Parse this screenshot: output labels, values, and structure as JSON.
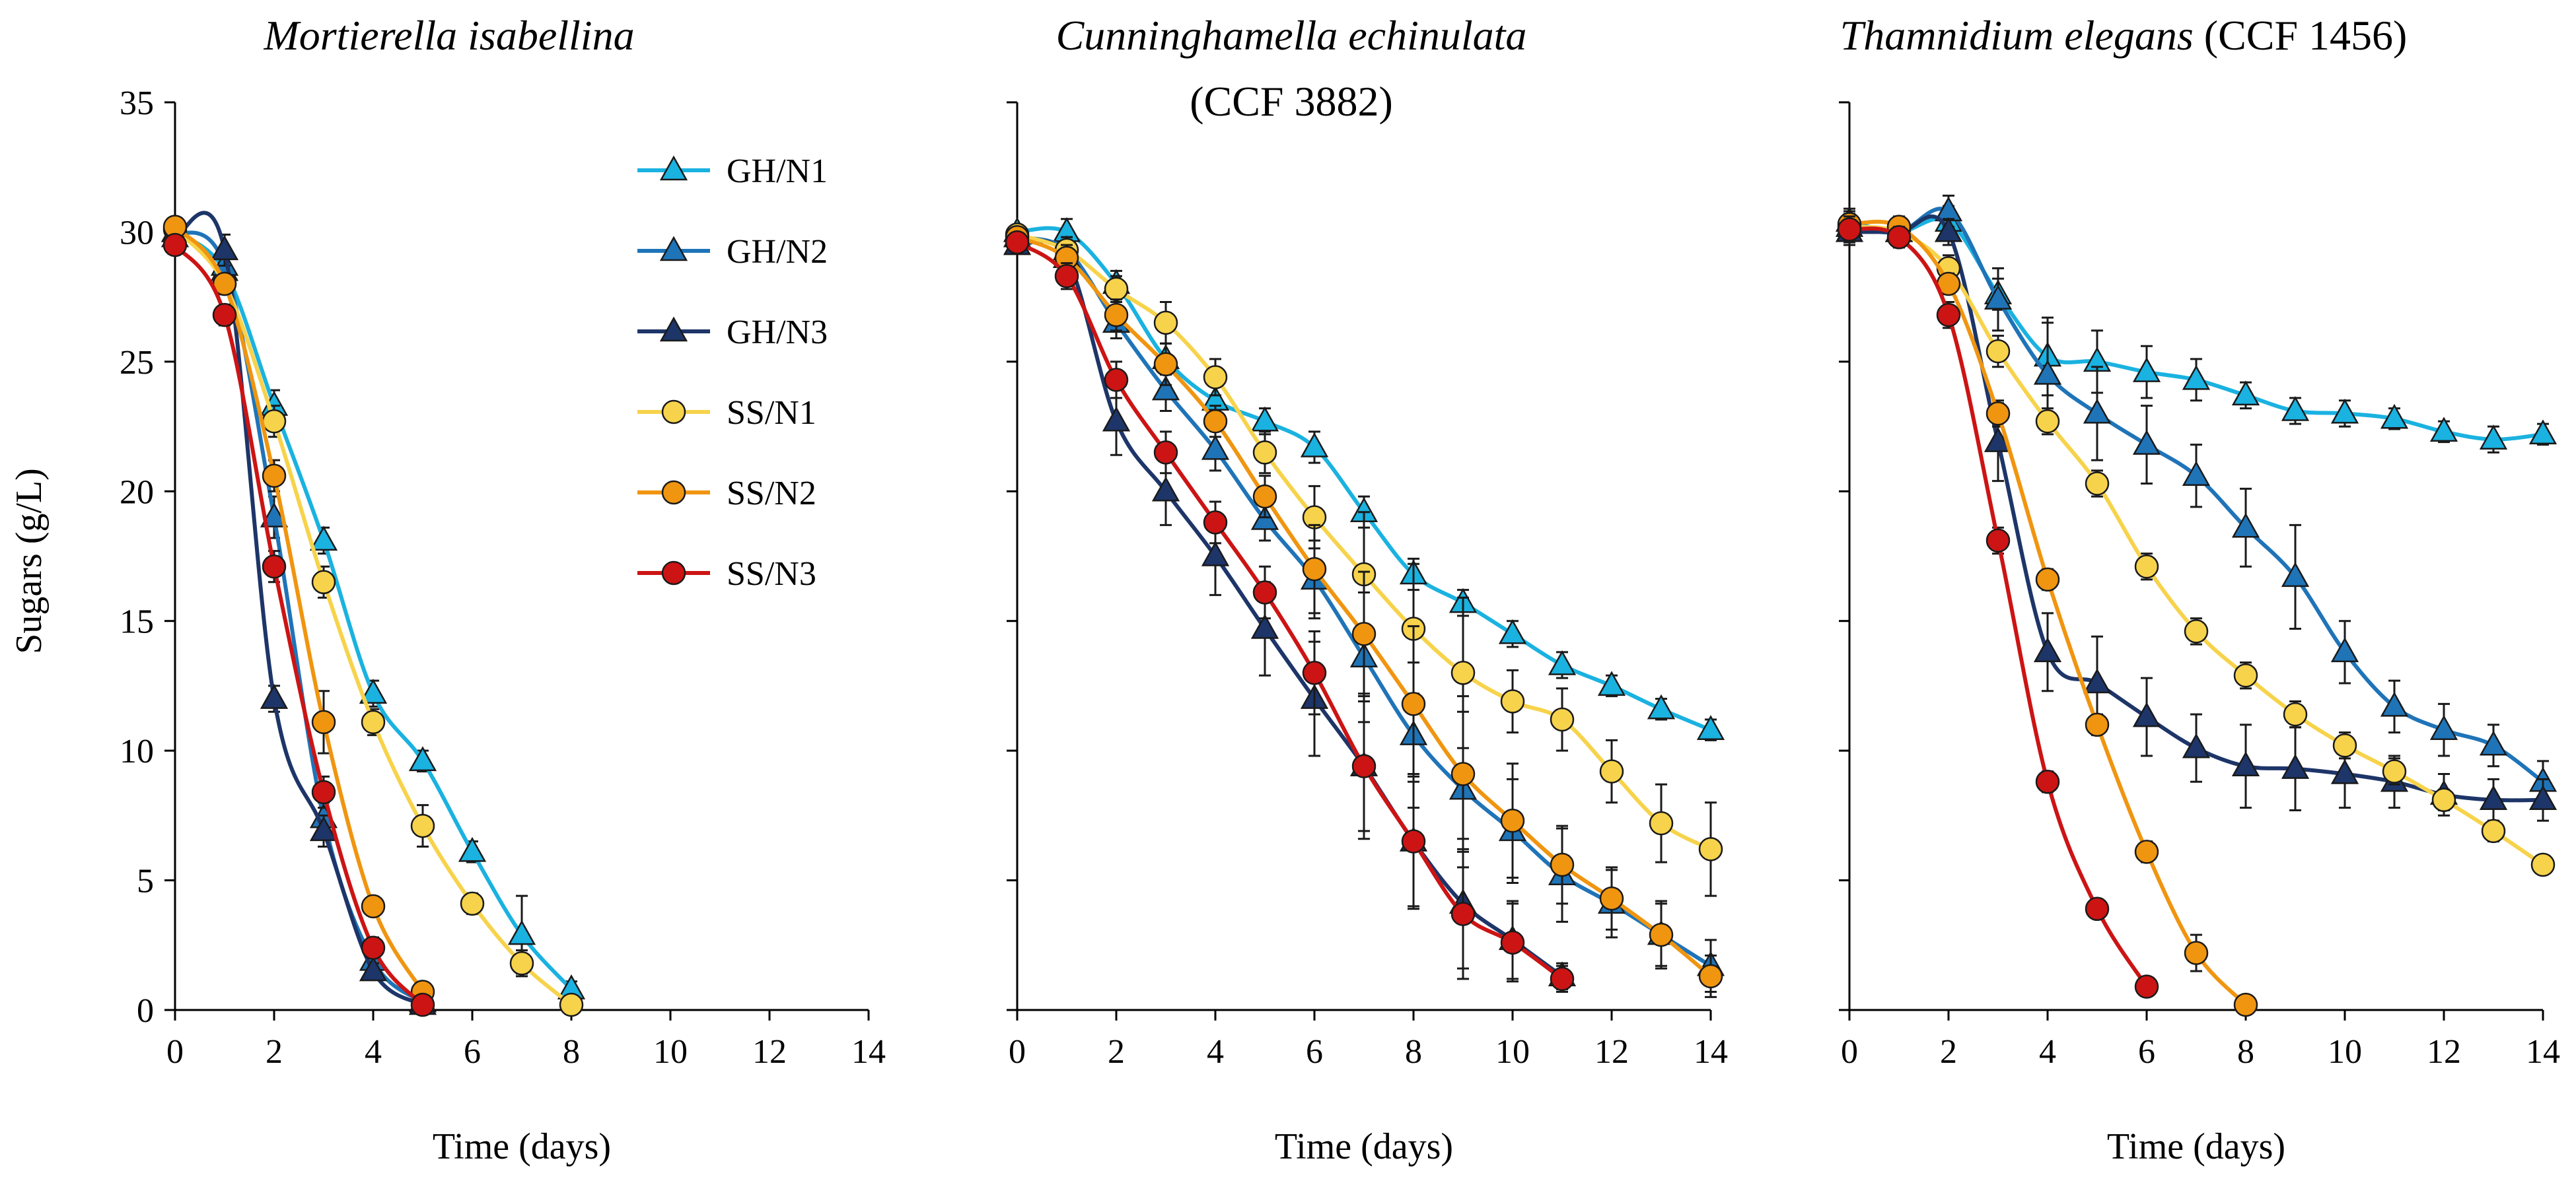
{
  "chart_data": [
    {
      "type": "line",
      "title": "Mortierella isabellina",
      "xlabel": "Time (days)",
      "ylabel": "Sugars (g/L)",
      "xlim": [
        0,
        14
      ],
      "ylim": [
        0,
        35
      ],
      "xticks": [
        0,
        2,
        4,
        6,
        8,
        10,
        12,
        14
      ],
      "yticks": [
        0,
        5,
        10,
        15,
        20,
        25,
        30,
        35
      ],
      "legend_position": "top-right",
      "series": [
        {
          "name": "GH/N1",
          "x": [
            0,
            1,
            2,
            3,
            4,
            5,
            6,
            7,
            8
          ],
          "y": [
            30.0,
            28.5,
            23.3,
            18.1,
            12.2,
            9.6,
            6.1,
            2.9,
            0.8
          ],
          "err": [
            0,
            0.5,
            0.6,
            0.5,
            0.5,
            0.4,
            0.4,
            1.5,
            0.3
          ]
        },
        {
          "name": "GH/N2",
          "x": [
            0,
            1,
            2,
            3,
            4,
            5
          ],
          "y": [
            30.0,
            28.7,
            19.0,
            7.4,
            1.9,
            0.3
          ],
          "err": [
            0,
            0.6,
            0.8,
            0.6,
            0.3,
            0.2
          ]
        },
        {
          "name": "GH/N3",
          "x": [
            0,
            1,
            2,
            3,
            4,
            5
          ],
          "y": [
            29.8,
            29.3,
            12.0,
            6.9,
            1.5,
            0.2
          ],
          "err": [
            0,
            0.6,
            0.5,
            0.6,
            0.3,
            0.2
          ]
        },
        {
          "name": "SS/N1",
          "x": [
            0,
            1,
            2,
            3,
            4,
            5,
            6,
            7,
            8
          ],
          "y": [
            30.1,
            28.0,
            22.7,
            16.5,
            11.1,
            7.1,
            4.1,
            1.8,
            0.2
          ],
          "err": [
            0,
            0.4,
            0.6,
            0.6,
            0.5,
            0.8,
            0.4,
            0.5,
            0.2
          ]
        },
        {
          "name": "SS/N2",
          "x": [
            0,
            1,
            2,
            3,
            4,
            5
          ],
          "y": [
            30.2,
            28.0,
            20.6,
            11.1,
            4.0,
            0.7
          ],
          "err": [
            0,
            0.4,
            0.6,
            1.2,
            0.3,
            0.3
          ]
        },
        {
          "name": "SS/N3",
          "x": [
            0,
            1,
            2,
            3,
            4,
            5
          ],
          "y": [
            29.5,
            26.8,
            17.1,
            8.4,
            2.4,
            0.2
          ],
          "err": [
            0,
            0.4,
            0.6,
            0.6,
            0.4,
            0.2
          ]
        }
      ]
    },
    {
      "type": "line",
      "title": "Cunninghamella echinulata",
      "subtitle": "(CCF 3882)",
      "xlabel": "Time (days)",
      "ylabel": "",
      "xlim": [
        0,
        14
      ],
      "ylim": [
        0,
        35
      ],
      "xticks": [
        0,
        2,
        4,
        6,
        8,
        10,
        12,
        14
      ],
      "yticks": [
        0,
        5,
        10,
        15,
        20,
        25,
        30,
        35
      ],
      "series": [
        {
          "name": "GH/N1",
          "x": [
            0,
            1,
            2,
            3,
            4,
            5,
            6,
            7,
            8,
            9,
            10,
            11,
            12,
            13,
            14
          ],
          "y": [
            30.0,
            30.0,
            28.0,
            25.1,
            23.5,
            22.7,
            21.7,
            19.2,
            16.8,
            15.7,
            14.5,
            13.3,
            12.5,
            11.6,
            10.8
          ],
          "err": [
            0,
            0.5,
            0.5,
            0.6,
            0.6,
            0.5,
            0.6,
            0.6,
            0.6,
            0.5,
            0.5,
            0.5,
            0.4,
            0.4,
            0.4
          ]
        },
        {
          "name": "GH/N2",
          "x": [
            0,
            1,
            2,
            3,
            4,
            5,
            6,
            7,
            8,
            9,
            10,
            11,
            12,
            13,
            14
          ],
          "y": [
            29.8,
            29.3,
            26.5,
            23.9,
            21.6,
            18.9,
            16.6,
            13.6,
            10.6,
            8.5,
            6.9,
            5.2,
            4.1,
            2.9,
            1.7
          ],
          "err": [
            0,
            0.5,
            0.6,
            0.8,
            0.8,
            0.8,
            1.5,
            2.5,
            2.8,
            3.0,
            2.0,
            1.8,
            1.3,
            1.3,
            1.0
          ]
        },
        {
          "name": "GH/N3",
          "x": [
            0,
            1,
            2,
            3,
            4,
            5,
            6,
            7,
            8,
            9,
            10,
            11
          ],
          "y": [
            29.5,
            29.0,
            22.7,
            20.0,
            17.5,
            14.7,
            12.0,
            9.4,
            6.5,
            4.1,
            2.7,
            1.3
          ],
          "err": [
            0,
            0.5,
            1.3,
            1.3,
            1.5,
            1.8,
            2.2,
            2.5,
            2.5,
            2.5,
            1.5,
            0.5
          ]
        },
        {
          "name": "SS/N1",
          "x": [
            0,
            1,
            2,
            3,
            4,
            5,
            6,
            7,
            8,
            9,
            10,
            11,
            12,
            13,
            14
          ],
          "y": [
            29.9,
            29.3,
            27.8,
            26.5,
            24.4,
            21.5,
            19.0,
            16.8,
            14.7,
            13.0,
            11.9,
            11.2,
            9.2,
            7.2,
            6.2
          ],
          "err": [
            0,
            0.5,
            0.5,
            0.8,
            0.7,
            0.8,
            1.2,
            2.4,
            2.5,
            2.9,
            1.2,
            1.2,
            1.2,
            1.5,
            1.8
          ]
        },
        {
          "name": "SS/N2",
          "x": [
            0,
            1,
            2,
            3,
            4,
            5,
            6,
            7,
            8,
            9,
            10,
            11,
            12,
            13,
            14
          ],
          "y": [
            29.8,
            29.0,
            26.8,
            24.9,
            22.7,
            19.8,
            17.0,
            14.5,
            11.8,
            9.1,
            7.3,
            5.6,
            4.3,
            2.9,
            1.3
          ],
          "err": [
            0,
            0.5,
            0.6,
            0.8,
            0.6,
            0.8,
            1.7,
            2.4,
            3.0,
            3.0,
            2.2,
            1.5,
            1.2,
            1.2,
            0.8
          ]
        },
        {
          "name": "SS/N3",
          "x": [
            0,
            1,
            2,
            3,
            4,
            5,
            6,
            7,
            8,
            9,
            10,
            11
          ],
          "y": [
            29.6,
            28.3,
            24.3,
            21.5,
            18.8,
            16.1,
            13.0,
            9.4,
            6.5,
            3.7,
            2.6,
            1.2
          ],
          "err": [
            0,
            0.5,
            0.7,
            0.8,
            0.8,
            1.0,
            1.6,
            2.8,
            2.6,
            2.5,
            1.5,
            0.5
          ]
        }
      ]
    },
    {
      "type": "line",
      "title": "Thamnidium elegans",
      "title_suffix": " (CCF 1456)",
      "xlabel": "Time (days)",
      "ylabel": "",
      "xlim": [
        0,
        14
      ],
      "ylim": [
        0,
        35
      ],
      "xticks": [
        0,
        2,
        4,
        6,
        8,
        10,
        12,
        14
      ],
      "yticks": [
        0,
        5,
        10,
        15,
        20,
        25,
        30,
        35
      ],
      "series": [
        {
          "name": "GH/N1",
          "x": [
            0,
            1,
            2,
            3,
            4,
            5,
            6,
            7,
            8,
            9,
            10,
            11,
            12,
            13,
            14
          ],
          "y": [
            30.4,
            30.0,
            30.4,
            27.6,
            25.2,
            25.0,
            24.6,
            24.3,
            23.7,
            23.1,
            23.0,
            22.8,
            22.3,
            22.0,
            22.2
          ],
          "err": [
            0.5,
            0.4,
            0.6,
            0.6,
            1.5,
            1.2,
            1.0,
            0.8,
            0.5,
            0.5,
            0.5,
            0.4,
            0.4,
            0.5,
            0.4
          ]
        },
        {
          "name": "GH/N2",
          "x": [
            0,
            1,
            2,
            3,
            4,
            5,
            6,
            7,
            8,
            9,
            10,
            11,
            12,
            13,
            14
          ],
          "y": [
            30.2,
            30.0,
            30.8,
            27.4,
            24.5,
            23.0,
            21.8,
            20.6,
            18.6,
            16.7,
            13.8,
            11.7,
            10.8,
            10.2,
            8.8
          ],
          "err": [
            0.5,
            0.4,
            0.6,
            1.2,
            2.0,
            1.8,
            1.5,
            1.2,
            1.5,
            2.0,
            1.2,
            1.0,
            1.0,
            0.8,
            0.8
          ]
        },
        {
          "name": "GH/N3",
          "x": [
            0,
            1,
            2,
            3,
            4,
            5,
            6,
            7,
            8,
            9,
            10,
            11,
            12,
            13,
            14
          ],
          "y": [
            30.0,
            30.0,
            30.0,
            21.9,
            13.8,
            12.6,
            11.3,
            10.1,
            9.4,
            9.3,
            9.1,
            8.8,
            8.3,
            8.1,
            8.1
          ],
          "err": [
            0.5,
            0.4,
            0.5,
            1.5,
            1.5,
            1.8,
            1.5,
            1.3,
            1.6,
            1.6,
            1.3,
            1.0,
            0.8,
            0.8,
            0.8
          ]
        },
        {
          "name": "SS/N1",
          "x": [
            0,
            1,
            2,
            3,
            4,
            5,
            6,
            7,
            8,
            9,
            10,
            11,
            12,
            13,
            14
          ],
          "y": [
            30.2,
            30.0,
            28.6,
            25.4,
            22.7,
            20.3,
            17.1,
            14.6,
            12.9,
            11.4,
            10.2,
            9.2,
            8.1,
            6.9,
            5.6
          ],
          "err": [
            0.5,
            0.4,
            0.5,
            0.6,
            0.5,
            0.5,
            0.5,
            0.5,
            0.5,
            0.5,
            0.5,
            0.5,
            0.4,
            0.4,
            0.3
          ]
        },
        {
          "name": "SS/N2",
          "x": [
            0,
            1,
            2,
            3,
            4,
            5,
            6,
            7,
            8
          ],
          "y": [
            30.3,
            30.2,
            28.0,
            23.0,
            16.6,
            11.0,
            6.1,
            2.2,
            0.2
          ],
          "err": [
            0.5,
            0.4,
            0.4,
            0.5,
            0.4,
            0.4,
            0.4,
            0.7,
            0.2
          ]
        },
        {
          "name": "SS/N3",
          "x": [
            0,
            1,
            2,
            3,
            4,
            5,
            6
          ],
          "y": [
            30.1,
            29.8,
            26.8,
            18.1,
            8.8,
            3.9,
            0.9
          ],
          "err": [
            0.5,
            0.4,
            0.5,
            0.5,
            0.4,
            0.3,
            0.2
          ]
        }
      ]
    }
  ],
  "styles": {
    "GH/N1": {
      "color": "#1ab2e0",
      "marker": "triangle"
    },
    "GH/N2": {
      "color": "#1f74b8",
      "marker": "triangle"
    },
    "GH/N3": {
      "color": "#1d3568",
      "marker": "triangle"
    },
    "SS/N1": {
      "color": "#f7d34b",
      "marker": "circle"
    },
    "SS/N2": {
      "color": "#f09510",
      "marker": "circle"
    },
    "SS/N3": {
      "color": "#cc1414",
      "marker": "circle"
    }
  },
  "legend_items": [
    "GH/N1",
    "GH/N2",
    "GH/N3",
    "SS/N1",
    "SS/N2",
    "SS/N3"
  ]
}
